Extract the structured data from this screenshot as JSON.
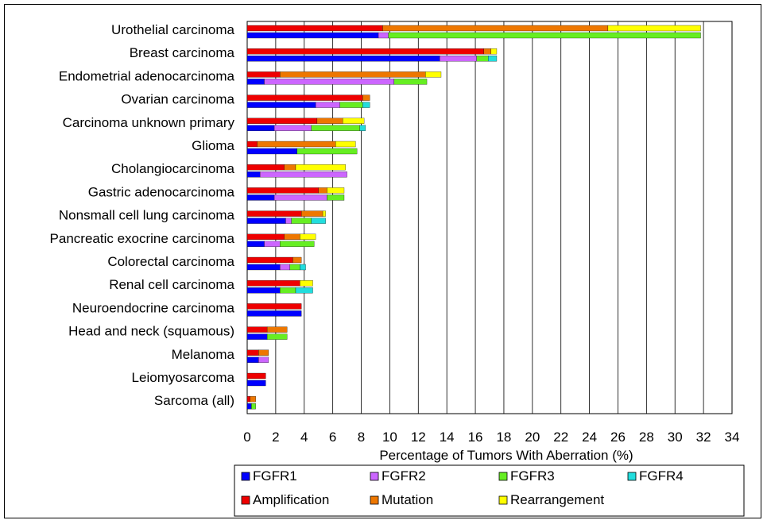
{
  "chart_data": {
    "type": "bar",
    "orientation": "horizontal",
    "stacked": true,
    "title": "",
    "xlabel": "Percentage of Tumors With Aberration (%)",
    "ylabel": "",
    "xlim": [
      0,
      34
    ],
    "xticks": [
      0,
      2,
      4,
      6,
      8,
      10,
      12,
      14,
      16,
      18,
      20,
      22,
      24,
      26,
      28,
      30,
      32,
      34
    ],
    "grid": "vertical",
    "legend": "bottom",
    "categories": [
      "Urothelial carcinoma",
      "Breast carcinoma",
      "Endometrial adenocarcinoma",
      "Ovarian carcinoma",
      "Carcinoma unknown primary",
      "Glioma",
      "Cholangiocarcinoma",
      "Gastric adenocarcinoma",
      "Nonsmall cell lung carcinoma",
      "Pancreatic exocrine carcinoma",
      "Colorectal carcinoma",
      "Renal cell carcinoma",
      "Neuroendocrine carcinoma",
      "Head and neck (squamous)",
      "Melanoma",
      "Leiomyosarcoma",
      "Sarcoma (all)"
    ],
    "gene_series": [
      {
        "name": "FGFR1",
        "color": "#0000ff",
        "values": [
          9.2,
          13.5,
          1.2,
          4.8,
          1.9,
          3.5,
          0.9,
          1.9,
          2.7,
          1.2,
          2.3,
          2.3,
          3.8,
          1.4,
          0.8,
          1.3,
          0.3
        ]
      },
      {
        "name": "FGFR2",
        "color": "#cc66ff",
        "values": [
          0.7,
          2.6,
          9.1,
          1.7,
          2.6,
          0.0,
          6.1,
          3.7,
          0.4,
          1.1,
          0.7,
          0.0,
          0.0,
          0.0,
          0.7,
          0.0,
          0.0
        ]
      },
      {
        "name": "FGFR3",
        "color": "#66ee22",
        "values": [
          21.9,
          0.8,
          2.3,
          1.6,
          3.4,
          4.2,
          0.0,
          1.2,
          1.4,
          2.4,
          0.7,
          1.1,
          0.0,
          1.4,
          0.0,
          0.0,
          0.3
        ]
      },
      {
        "name": "FGFR4",
        "color": "#22dddd",
        "values": [
          0.0,
          0.6,
          0.0,
          0.5,
          0.4,
          0.0,
          0.0,
          0.0,
          1.0,
          0.0,
          0.4,
          1.2,
          0.0,
          0.0,
          0.0,
          0.0,
          0.0
        ]
      }
    ],
    "aberration_series": [
      {
        "name": "Amplification",
        "color": "#ee0000",
        "values": [
          9.5,
          16.6,
          2.3,
          8.1,
          4.9,
          0.7,
          2.6,
          5.0,
          3.8,
          2.6,
          3.2,
          3.7,
          3.8,
          1.4,
          0.8,
          1.3,
          0.2
        ]
      },
      {
        "name": "Mutation",
        "color": "#ee7700",
        "values": [
          15.8,
          0.5,
          10.2,
          0.5,
          1.8,
          5.5,
          0.8,
          0.6,
          1.5,
          1.1,
          0.6,
          0.0,
          0.0,
          1.4,
          0.7,
          0.0,
          0.4
        ]
      },
      {
        "name": "Rearrangement",
        "color": "#ffff00",
        "values": [
          6.5,
          0.4,
          1.1,
          0.0,
          1.5,
          1.4,
          3.5,
          1.2,
          0.2,
          1.1,
          0.0,
          0.9,
          0.0,
          0.0,
          0.0,
          0.0,
          0.0
        ]
      }
    ],
    "legend_entries": [
      {
        "name": "FGFR1",
        "color": "#0000ff"
      },
      {
        "name": "FGFR2",
        "color": "#cc66ff"
      },
      {
        "name": "FGFR3",
        "color": "#66ee22"
      },
      {
        "name": "FGFR4",
        "color": "#22dddd"
      },
      {
        "name": "Amplification",
        "color": "#ee0000"
      },
      {
        "name": "Mutation",
        "color": "#ee7700"
      },
      {
        "name": "Rearrangement",
        "color": "#ffff00"
      }
    ]
  }
}
